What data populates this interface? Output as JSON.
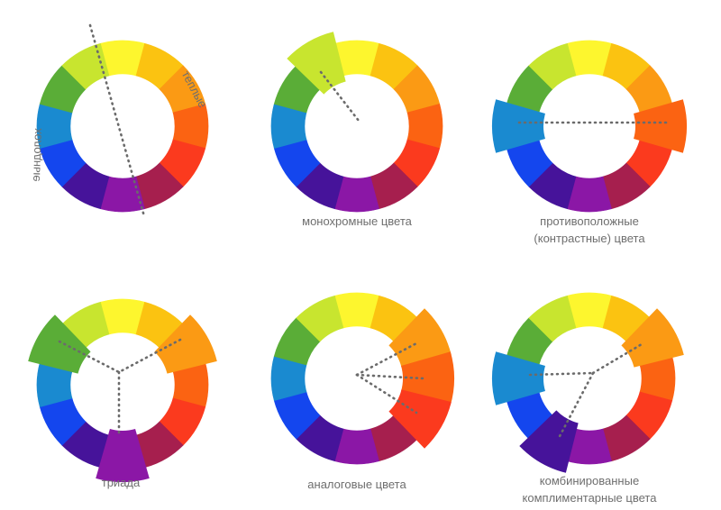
{
  "colors": [
    "#fdf62e",
    "#fbc311",
    "#fb9a14",
    "#fb6312",
    "#fb3a1e",
    "#a61f4e",
    "#8b17a6",
    "#46139a",
    "#1446ee",
    "#1a8ad0",
    "#5aad37",
    "#c8e52f"
  ],
  "wheels": [
    {
      "name": "warm-cool-wheel",
      "caption": [],
      "highlight": [],
      "lines": "split"
    },
    {
      "name": "monochrome-wheel",
      "caption": [
        "монохромные цвета"
      ],
      "highlight": [
        11
      ],
      "lines": "mono"
    },
    {
      "name": "complementary-wheel",
      "caption": [
        "противоположные",
        "(контрастные) цвета"
      ],
      "highlight": [
        3,
        9
      ],
      "lines": "opposite"
    },
    {
      "name": "triad-wheel",
      "caption": [
        "триада"
      ],
      "highlight": [
        2,
        6,
        10
      ],
      "lines": "triad"
    },
    {
      "name": "analogous-wheel",
      "caption": [
        "аналоговые цвета"
      ],
      "highlight": [
        2,
        3,
        4
      ],
      "lines": "analog"
    },
    {
      "name": "split-complementary-wheel",
      "caption": [
        "комбинированные",
        "комплиментарные цвета"
      ],
      "highlight": [
        2,
        7,
        9
      ],
      "lines": "split-comp"
    }
  ],
  "labels": {
    "warm": "теплые",
    "cool": "холодные"
  }
}
